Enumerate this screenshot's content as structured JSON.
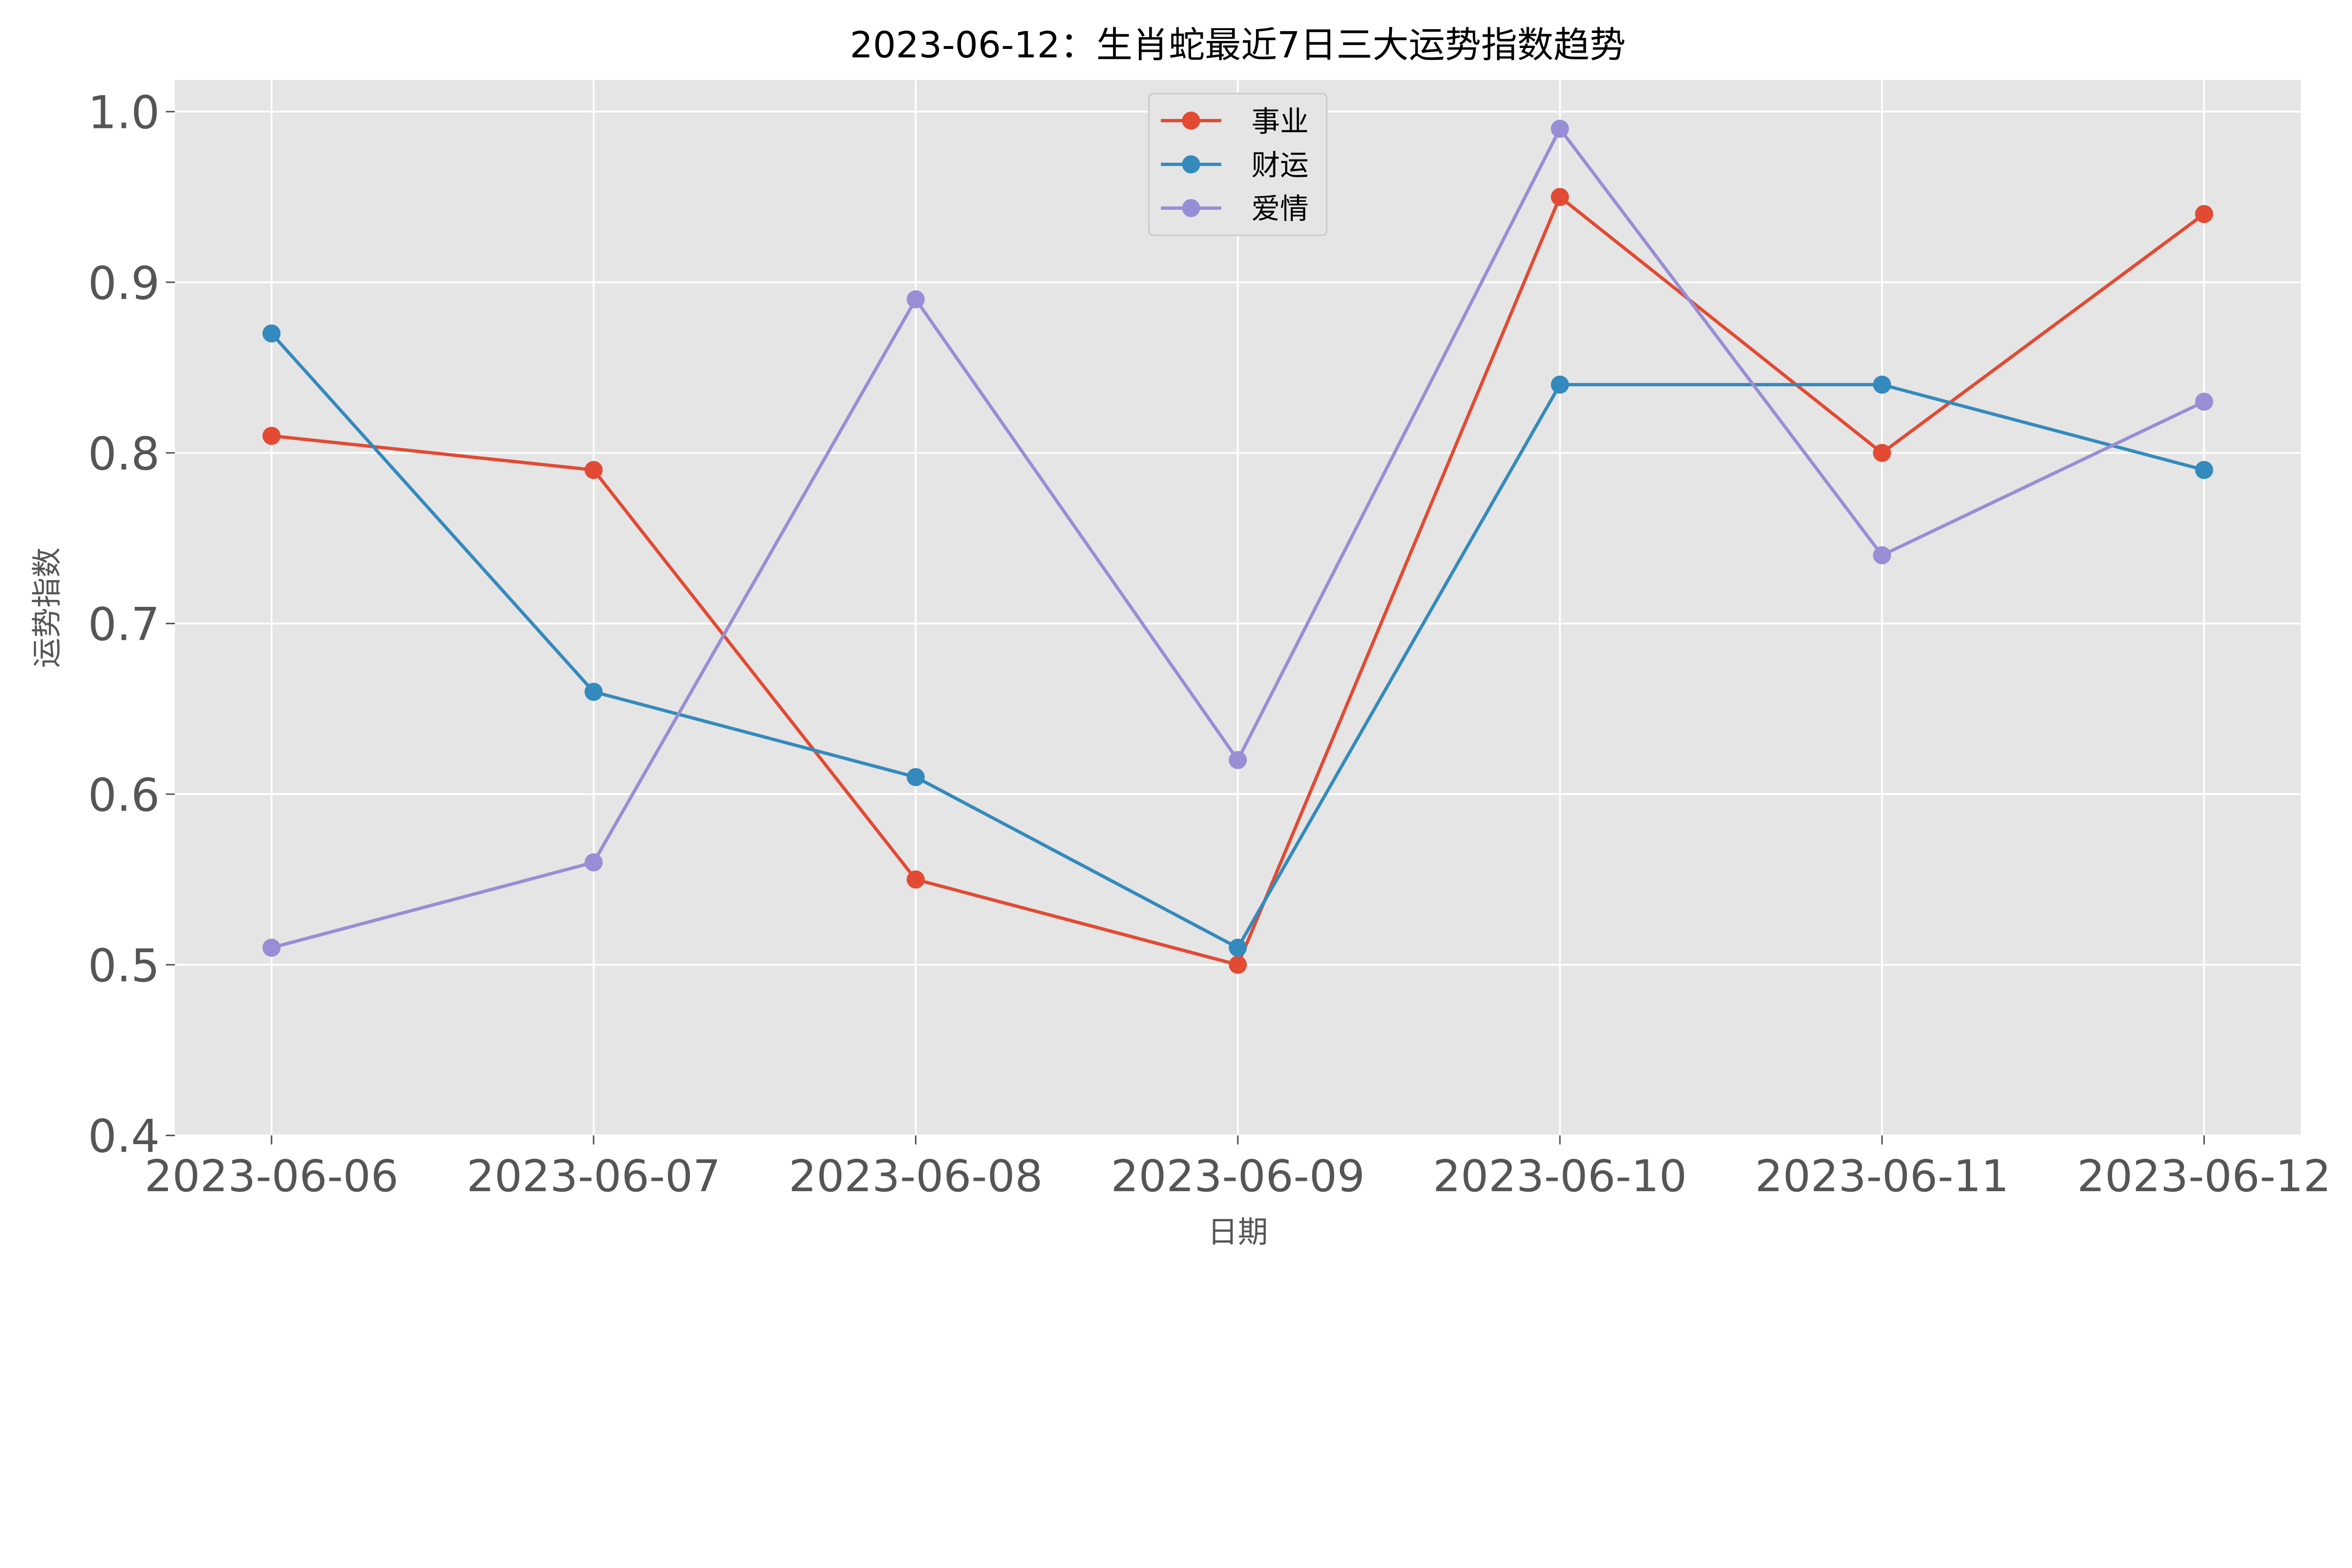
{
  "chart_data": {
    "type": "line",
    "title": "2023-06-12：生肖蛇最近7日三大运势指数趋势",
    "xlabel": "日期",
    "ylabel": "运势指数",
    "categories": [
      "2023-06-06",
      "2023-06-07",
      "2023-06-08",
      "2023-06-09",
      "2023-06-10",
      "2023-06-11",
      "2023-06-12"
    ],
    "ylim": [
      0.4,
      1.0186
    ],
    "yticks": [
      0.4,
      0.5,
      0.6,
      0.7,
      0.8,
      0.9,
      1.0
    ],
    "ytick_labels": [
      "0.4",
      "0.5",
      "0.6",
      "0.7",
      "0.8",
      "0.9",
      "1.0"
    ],
    "grid": true,
    "legend_position": "top-center",
    "background": "#E5E5E5",
    "series": [
      {
        "name": "事业",
        "color": "#E24A33",
        "marker": "circle",
        "values": [
          0.81,
          0.79,
          0.55,
          0.5,
          0.95,
          0.8,
          0.94
        ]
      },
      {
        "name": "财运",
        "color": "#348ABD",
        "marker": "circle",
        "values": [
          0.87,
          0.66,
          0.61,
          0.51,
          0.84,
          0.84,
          0.79
        ]
      },
      {
        "name": "爱情",
        "color": "#988ED5",
        "marker": "circle",
        "values": [
          0.51,
          0.56,
          0.89,
          0.62,
          0.99,
          0.74,
          0.83
        ]
      }
    ]
  }
}
